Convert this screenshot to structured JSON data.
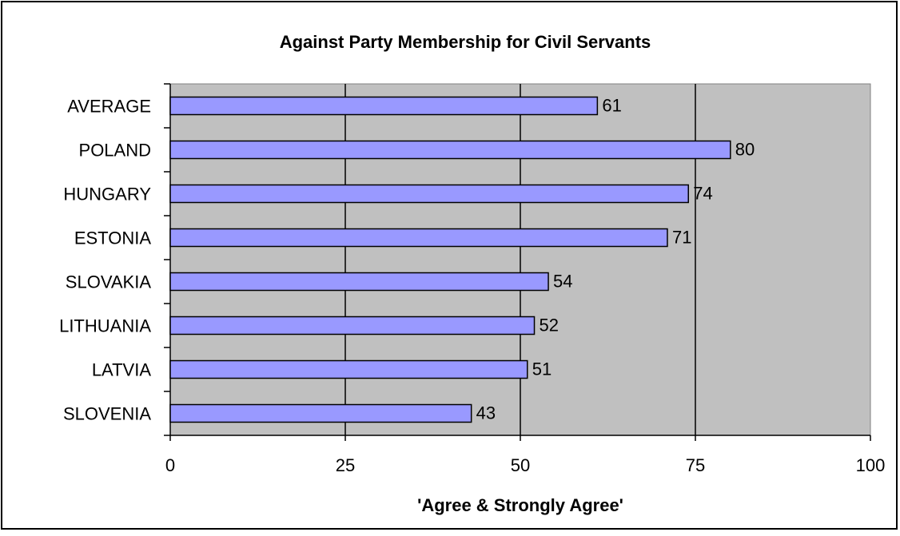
{
  "chart_data": {
    "type": "bar",
    "orientation": "horizontal",
    "title": "Against Party Membership for Civil Servants",
    "xlabel": "'Agree & Strongly Agree'",
    "ylabel": "",
    "categories": [
      "AVERAGE",
      "POLAND",
      "HUNGARY",
      "ESTONIA",
      "SLOVAKIA",
      "LITHUANIA",
      "LATVIA",
      "SLOVENIA"
    ],
    "values": [
      61,
      80,
      74,
      71,
      54,
      52,
      51,
      43
    ],
    "data_labels": [
      "61",
      "80",
      "74",
      "71",
      "54",
      "52",
      "51",
      "43"
    ],
    "xlim": [
      0,
      100
    ],
    "xticks": [
      0,
      25,
      50,
      75,
      100
    ],
    "xtick_labels": [
      "0",
      "25",
      "50",
      "75",
      "100"
    ],
    "grid": "vertical",
    "legend": "none",
    "colors": {
      "bar_fill": "#9999FF",
      "bar_stroke": "#000000",
      "plot_background": "#C0C0C0",
      "page_background": "#FFFFFF",
      "text": "#000000"
    }
  }
}
